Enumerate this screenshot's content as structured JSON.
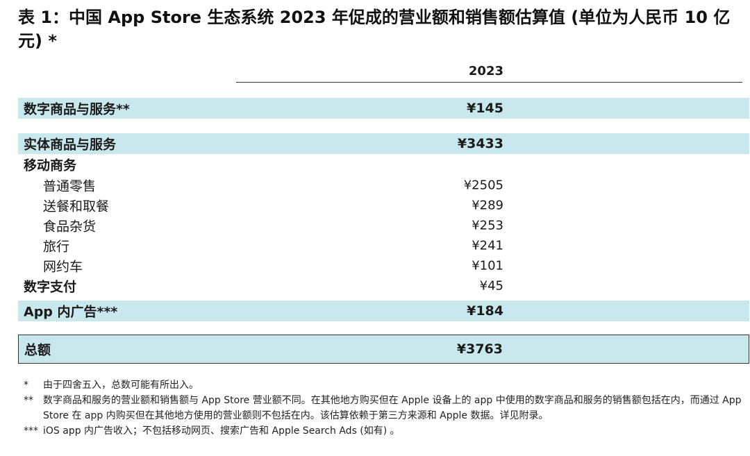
{
  "title": "表 1：中国 App Store 生态系统 2023 年促成的营业额和销售额估算值 (单位为人民币 10 亿元) *",
  "column_header": "2023",
  "rows": [
    {
      "label": "数字商品与服务**",
      "value": "¥145"
    },
    {
      "label": "实体商品与服务",
      "value": "¥3433"
    },
    {
      "label": "移动商务",
      "value": ""
    },
    {
      "label": "普通零售",
      "value": "¥2505"
    },
    {
      "label": "送餐和取餐",
      "value": "¥289"
    },
    {
      "label": "食品杂货",
      "value": "¥253"
    },
    {
      "label": "旅行",
      "value": "¥241"
    },
    {
      "label": "网约车",
      "value": "¥101"
    },
    {
      "label": "数字支付",
      "value": "¥45"
    },
    {
      "label": "App 内广告***",
      "value": "¥184"
    }
  ],
  "total": {
    "label": "总额",
    "value": "¥3763"
  },
  "footnotes": [
    {
      "mark": "*",
      "text": "由于四舍五入，总数可能有所出入。"
    },
    {
      "mark": "**",
      "text": "数字商品和服务的营业额和销售额与 App Store 营业额不同。在其他地方购买但在 Apple 设备上的 app 中使用的数字商品和服务的销售额包括在内，而通过 App Store 在 app 内购买但在其他地方使用的营业额则不包括在内。该估算依赖于第三方来源和 Apple 数据。详见附录。"
    },
    {
      "mark": "***",
      "text": "iOS app 内广告收入；不包括移动网页、搜索广告和 Apple Search Ads (如有) 。"
    }
  ]
}
